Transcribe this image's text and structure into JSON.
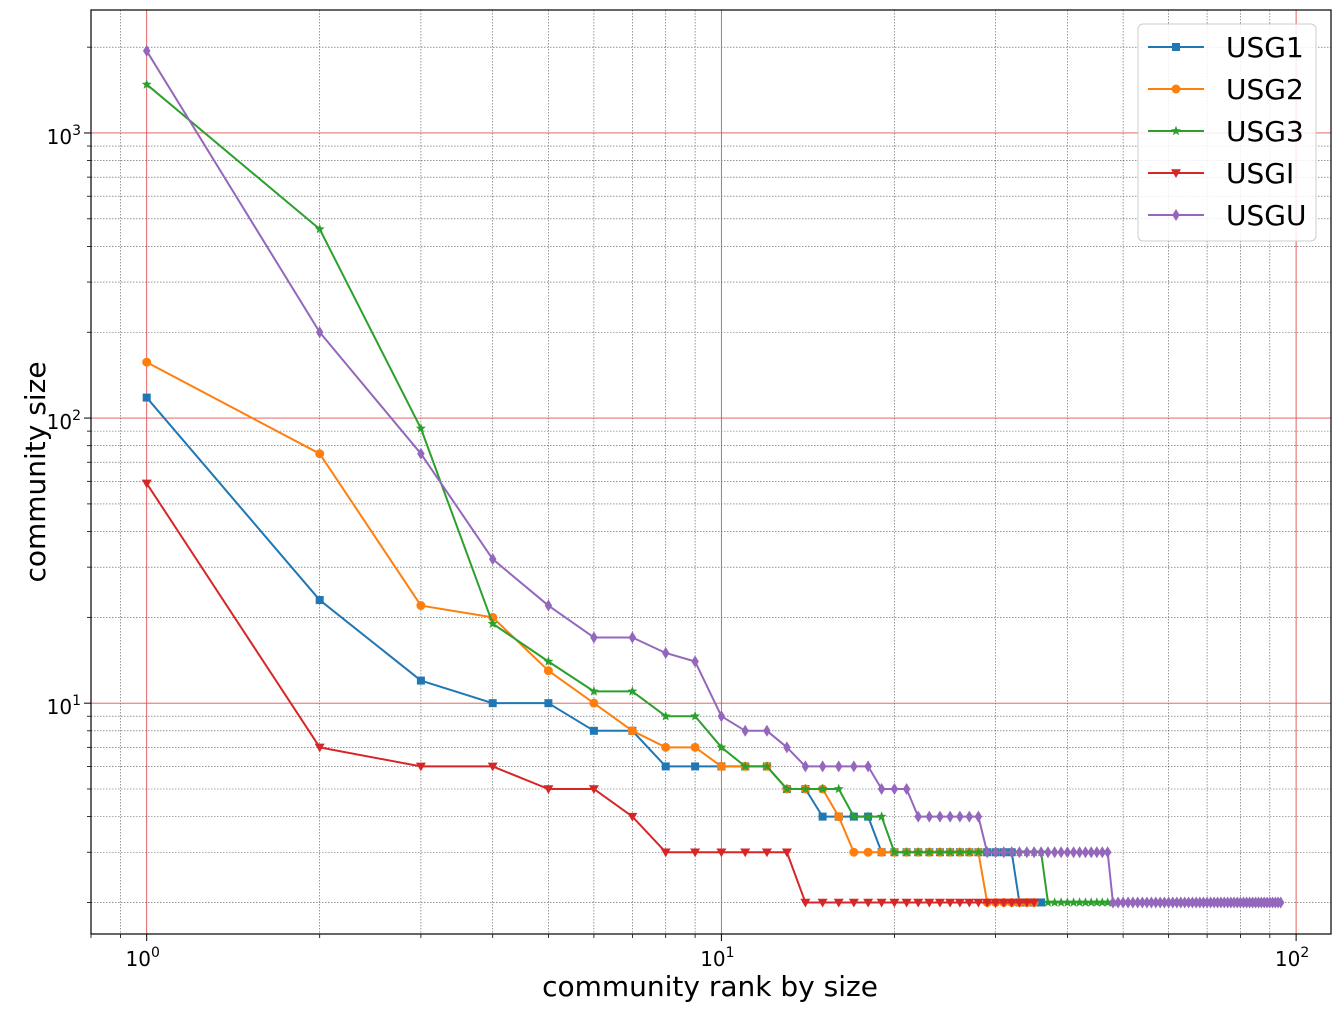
{
  "chart_data": {
    "type": "line",
    "xlabel": "community rank by size",
    "ylabel": "community size",
    "xscale": "log",
    "yscale": "log",
    "xlim": [
      0.8,
      115
    ],
    "ylim": [
      1.55,
      2700
    ],
    "grid": true,
    "legend_position": "top-right",
    "x_tick_labels": [
      {
        "value": 1,
        "base": "10",
        "exp": "0"
      },
      {
        "value": 10,
        "base": "10",
        "exp": "1"
      },
      {
        "value": 100,
        "base": "10",
        "exp": "2"
      }
    ],
    "y_tick_labels": [
      {
        "value": 10,
        "base": "10",
        "exp": "1"
      },
      {
        "value": 100,
        "base": "10",
        "exp": "2"
      },
      {
        "value": 1000,
        "base": "10",
        "exp": "3"
      }
    ],
    "series": [
      {
        "name": "USG1",
        "color": "#1f77b4",
        "marker": "square",
        "x": [
          1,
          2,
          3,
          4,
          5,
          6,
          7,
          8,
          9,
          10,
          11,
          12,
          13,
          14,
          15,
          16,
          17,
          18,
          19,
          20,
          21,
          22,
          23,
          24,
          25,
          26,
          27,
          28,
          29,
          30,
          31,
          32,
          33,
          34,
          35,
          36
        ],
        "y": [
          118,
          23,
          12,
          10,
          10,
          8,
          8,
          6,
          6,
          6,
          6,
          6,
          5,
          5,
          4,
          4,
          4,
          4,
          3,
          3,
          3,
          3,
          3,
          3,
          3,
          3,
          3,
          3,
          3,
          3,
          3,
          3,
          2,
          2,
          2,
          2
        ]
      },
      {
        "name": "USG2",
        "color": "#ff7f0e",
        "marker": "circle",
        "x": [
          1,
          2,
          3,
          4,
          5,
          6,
          7,
          8,
          9,
          10,
          11,
          12,
          13,
          14,
          15,
          16,
          17,
          18,
          19,
          20,
          21,
          22,
          23,
          24,
          25,
          26,
          27,
          28,
          29,
          30,
          31,
          32,
          33,
          34,
          35
        ],
        "y": [
          157,
          75,
          22,
          20,
          13,
          10,
          8,
          7,
          7,
          6,
          6,
          6,
          5,
          5,
          5,
          4,
          3,
          3,
          3,
          3,
          3,
          3,
          3,
          3,
          3,
          3,
          3,
          3,
          2,
          2,
          2,
          2,
          2,
          2,
          2
        ]
      },
      {
        "name": "USG3",
        "color": "#2ca02c",
        "marker": "star",
        "x": [
          1,
          2,
          3,
          4,
          5,
          6,
          7,
          8,
          9,
          10,
          11,
          12,
          13,
          14,
          15,
          16,
          17,
          18,
          19,
          20,
          21,
          22,
          23,
          24,
          25,
          26,
          27,
          28,
          29,
          30,
          31,
          32,
          33,
          34,
          35,
          36,
          37,
          38,
          39,
          40,
          41,
          42,
          43,
          44,
          45,
          46,
          47,
          48
        ],
        "y": [
          1480,
          460,
          92,
          19,
          14,
          11,
          11,
          9,
          9,
          7,
          6,
          6,
          5,
          5,
          5,
          5,
          4,
          4,
          4,
          3,
          3,
          3,
          3,
          3,
          3,
          3,
          3,
          3,
          3,
          3,
          3,
          3,
          3,
          3,
          3,
          3,
          2,
          2,
          2,
          2,
          2,
          2,
          2,
          2,
          2,
          2,
          2,
          2
        ]
      },
      {
        "name": "USGI",
        "color": "#d62728",
        "marker": "triangle-down",
        "x": [
          1,
          2,
          3,
          4,
          5,
          6,
          7,
          8,
          9,
          10,
          11,
          12,
          13,
          14,
          15,
          16,
          17,
          18,
          19,
          20,
          21,
          22,
          23,
          24,
          25,
          26,
          27,
          28,
          29,
          30,
          31,
          32,
          33,
          34,
          35
        ],
        "y": [
          59,
          7,
          6,
          6,
          5,
          5,
          4,
          3,
          3,
          3,
          3,
          3,
          3,
          2,
          2,
          2,
          2,
          2,
          2,
          2,
          2,
          2,
          2,
          2,
          2,
          2,
          2,
          2,
          2,
          2,
          2,
          2,
          2,
          2,
          2
        ]
      },
      {
        "name": "USGU",
        "color": "#9467bd",
        "marker": "diamond",
        "x": [
          1,
          2,
          3,
          4,
          5,
          6,
          7,
          8,
          9,
          10,
          11,
          12,
          13,
          14,
          15,
          16,
          17,
          18,
          19,
          20,
          21,
          22,
          23,
          24,
          25,
          26,
          27,
          28,
          29,
          30,
          31,
          32,
          33,
          34,
          35,
          36,
          37,
          38,
          39,
          40,
          41,
          42,
          43,
          44,
          45,
          46,
          47,
          48,
          49,
          50,
          51,
          52,
          53,
          54,
          55,
          56,
          57,
          58,
          59,
          60,
          61,
          62,
          63,
          64,
          65,
          66,
          67,
          68,
          69,
          70,
          71,
          72,
          73,
          74,
          75,
          76,
          77,
          78,
          79,
          80,
          81,
          82,
          83,
          84,
          85,
          86,
          87,
          88,
          89,
          90,
          91,
          92,
          93,
          94
        ],
        "y": [
          1940,
          200,
          75,
          32,
          22,
          17,
          17,
          15,
          14,
          9,
          8,
          8,
          7,
          6,
          6,
          6,
          6,
          6,
          5,
          5,
          5,
          4,
          4,
          4,
          4,
          4,
          4,
          4,
          3,
          3,
          3,
          3,
          3,
          3,
          3,
          3,
          3,
          3,
          3,
          3,
          3,
          3,
          3,
          3,
          3,
          3,
          3,
          2,
          2,
          2,
          2,
          2,
          2,
          2,
          2,
          2,
          2,
          2,
          2,
          2,
          2,
          2,
          2,
          2,
          2,
          2,
          2,
          2,
          2,
          2,
          2,
          2,
          2,
          2,
          2,
          2,
          2,
          2,
          2,
          2,
          2,
          2,
          2,
          2,
          2,
          2,
          2,
          2,
          2,
          2,
          2,
          2,
          2,
          2
        ]
      }
    ]
  }
}
